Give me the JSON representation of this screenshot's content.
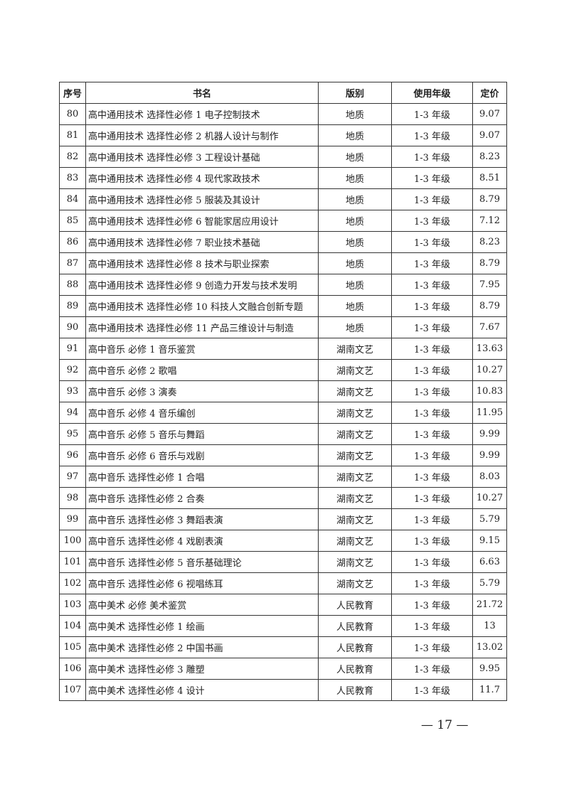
{
  "table": {
    "headers": [
      "序号",
      "书名",
      "版别",
      "使用年级",
      "定价"
    ],
    "rows": [
      [
        "80",
        "高中通用技术 选择性必修 1 电子控制技术",
        "地质",
        "1-3 年级",
        "9.07"
      ],
      [
        "81",
        "高中通用技术 选择性必修 2 机器人设计与制作",
        "地质",
        "1-3 年级",
        "9.07"
      ],
      [
        "82",
        "高中通用技术 选择性必修 3 工程设计基础",
        "地质",
        "1-3 年级",
        "8.23"
      ],
      [
        "83",
        "高中通用技术 选择性必修 4 现代家政技术",
        "地质",
        "1-3 年级",
        "8.51"
      ],
      [
        "84",
        "高中通用技术 选择性必修 5 服装及其设计",
        "地质",
        "1-3 年级",
        "8.79"
      ],
      [
        "85",
        "高中通用技术 选择性必修 6 智能家居应用设计",
        "地质",
        "1-3 年级",
        "7.12"
      ],
      [
        "86",
        "高中通用技术 选择性必修 7 职业技术基础",
        "地质",
        "1-3 年级",
        "8.23"
      ],
      [
        "87",
        "高中通用技术 选择性必修 8 技术与职业探索",
        "地质",
        "1-3 年级",
        "8.79"
      ],
      [
        "88",
        "高中通用技术 选择性必修 9 创造力开发与技术发明",
        "地质",
        "1-3 年级",
        "7.95"
      ],
      [
        "89",
        "高中通用技术 选择性必修 10 科技人文融合创新专题",
        "地质",
        "1-3 年级",
        "8.79"
      ],
      [
        "90",
        "高中通用技术 选择性必修 11 产品三维设计与制造",
        "地质",
        "1-3 年级",
        "7.67"
      ],
      [
        "91",
        "高中音乐 必修 1 音乐鉴赏",
        "湖南文艺",
        "1-3 年级",
        "13.63"
      ],
      [
        "92",
        "高中音乐 必修 2 歌唱",
        "湖南文艺",
        "1-3 年级",
        "10.27"
      ],
      [
        "93",
        "高中音乐 必修 3 演奏",
        "湖南文艺",
        "1-3 年级",
        "10.83"
      ],
      [
        "94",
        "高中音乐 必修 4 音乐编创",
        "湖南文艺",
        "1-3 年级",
        "11.95"
      ],
      [
        "95",
        "高中音乐 必修 5 音乐与舞蹈",
        "湖南文艺",
        "1-3 年级",
        "9.99"
      ],
      [
        "96",
        "高中音乐 必修 6 音乐与戏剧",
        "湖南文艺",
        "1-3 年级",
        "9.99"
      ],
      [
        "97",
        "高中音乐 选择性必修 1 合唱",
        "湖南文艺",
        "1-3 年级",
        "8.03"
      ],
      [
        "98",
        "高中音乐 选择性必修 2 合奏",
        "湖南文艺",
        "1-3 年级",
        "10.27"
      ],
      [
        "99",
        "高中音乐 选择性必修 3 舞蹈表演",
        "湖南文艺",
        "1-3 年级",
        "5.79"
      ],
      [
        "100",
        "高中音乐 选择性必修 4 戏剧表演",
        "湖南文艺",
        "1-3 年级",
        "9.15"
      ],
      [
        "101",
        "高中音乐 选择性必修 5 音乐基础理论",
        "湖南文艺",
        "1-3 年级",
        "6.63"
      ],
      [
        "102",
        "高中音乐 选择性必修 6 视唱练耳",
        "湖南文艺",
        "1-3 年级",
        "5.79"
      ],
      [
        "103",
        "高中美术 必修 美术鉴赏",
        "人民教育",
        "1-3 年级",
        "21.72"
      ],
      [
        "104",
        "高中美术 选择性必修 1 绘画",
        "人民教育",
        "1-3 年级",
        "13"
      ],
      [
        "105",
        "高中美术 选择性必修 2 中国书画",
        "人民教育",
        "1-3 年级",
        "13.02"
      ],
      [
        "106",
        "高中美术 选择性必修 3 雕塑",
        "人民教育",
        "1-3 年级",
        "9.95"
      ],
      [
        "107",
        "高中美术 选择性必修 4 设计",
        "人民教育",
        "1-3 年级",
        "11.7"
      ]
    ]
  },
  "page_number": "— 17 —"
}
